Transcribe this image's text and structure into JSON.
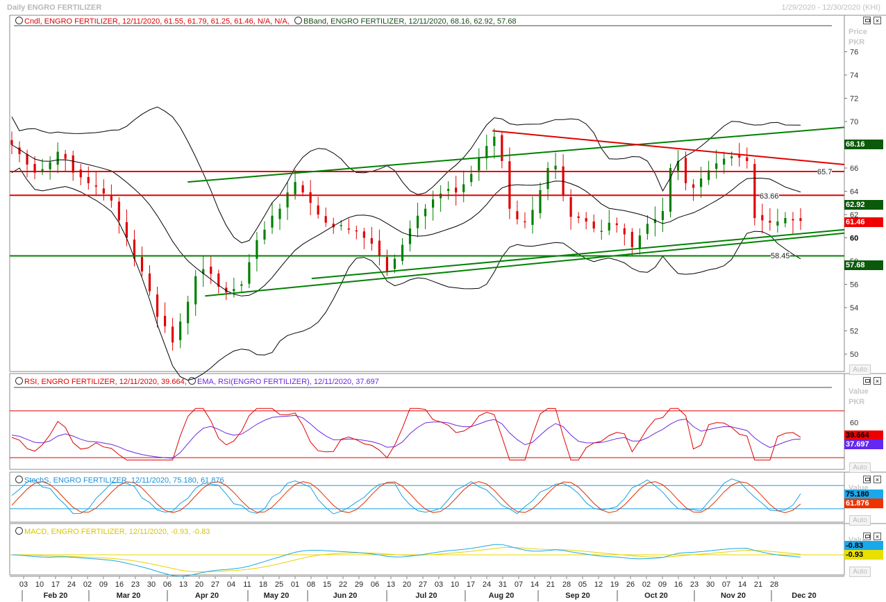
{
  "window": {
    "title": "Daily ENGRO FERTILIZER",
    "date_range": "1/29/2020 - 12/30/2020 (KHI)",
    "auto_label": "Auto"
  },
  "price_panel": {
    "legend_candle": "Cndl, ENGRO FERTILIZER, 12/11/2020, 61.55, 61.79, 61.25, 61.46, N/A, N/A,",
    "legend_bband": "BBand, ENGRO FERTILIZER, 12/11/2020, 68.16, 62.92, 57.68",
    "unit_label": "Price",
    "unit_sub": "PKR",
    "tags": {
      "bb_upper": "68.16",
      "bb_mid": "62.92",
      "close": "61.46",
      "bb_lower": "57.68"
    },
    "level_labels": {
      "l1": "65.7",
      "l2": "63.66",
      "l3": "58.45"
    }
  },
  "rsi_panel": {
    "legend_rsi": "RSI, ENGRO FERTILIZER, 12/11/2020, 39.664,",
    "legend_ema": "EMA, RSI(ENGRO FERTILIZER), 12/11/2020, 37.697",
    "unit_label": "Value",
    "unit_sub": "PKR",
    "tags": {
      "rsi": "39.664",
      "ema": "37.697"
    }
  },
  "stoch_panel": {
    "legend": "StochS, ENGRO FERTILIZER, 12/11/2020, 75.180, 61.876",
    "unit_label": "Value",
    "tags": {
      "k": "75.180",
      "d": "61.876"
    }
  },
  "macd_panel": {
    "legend": "MACD, ENGRO FERTILIZER, 12/11/2020, -0.93, -0.83",
    "unit_label": "Value",
    "tags": {
      "macd": "-0.83",
      "signal": "-0.93"
    }
  },
  "colors": {
    "candle_up": "#008000",
    "candle_down": "#e00000",
    "bband": "#000000",
    "support_line": "#008000",
    "resistance_line": "#e00000",
    "rsi": "#e00000",
    "ema": "#6a28e0",
    "stoch_k": "#1aa0e0",
    "stoch_d": "#e03000",
    "macd": "#1aa8e8",
    "signal": "#e8d400"
  },
  "chart_data": {
    "type": "candlestick",
    "ticker": "ENGRO FERTILIZER",
    "price_axis": {
      "ticks": [
        50,
        52,
        54,
        56,
        58,
        60,
        62,
        64,
        66,
        68,
        70,
        72,
        74,
        76
      ],
      "ylim": [
        49,
        78.5
      ]
    },
    "rsi_axis": {
      "ticks": [
        60
      ],
      "overbought": 70,
      "oversold": 30,
      "ylim": [
        20,
        90
      ]
    },
    "stoch_axis": {
      "upper": 80,
      "lower": 20
    },
    "macd_axis": {
      "zero": 0
    },
    "x_ticks": [
      "03",
      "10",
      "17",
      "24",
      "02",
      "09",
      "16",
      "23",
      "30",
      "06",
      "13",
      "20",
      "27",
      "04",
      "11",
      "18",
      "25",
      "01",
      "08",
      "15",
      "22",
      "29",
      "06",
      "13",
      "20",
      "27",
      "03",
      "10",
      "17",
      "24",
      "31",
      "07",
      "14",
      "21",
      "28",
      "05",
      "12",
      "19",
      "26",
      "02",
      "09",
      "16",
      "23",
      "30",
      "07",
      "14",
      "21",
      "28"
    ],
    "months": [
      "Feb 20",
      "Mar 20",
      "Apr 20",
      "May 20",
      "Jun 20",
      "Jul 20",
      "Aug 20",
      "Sep 20",
      "Oct 20",
      "Nov 20",
      "Dec 20"
    ],
    "last_bar": {
      "date": "12/11/2020",
      "open": 61.55,
      "high": 61.79,
      "low": 61.25,
      "close": 61.46
    },
    "bollinger_last": {
      "upper": 68.16,
      "middle": 62.92,
      "lower": 57.68
    },
    "horizontal_levels": [
      {
        "value": 65.7,
        "color": "red"
      },
      {
        "value": 63.66,
        "color": "red"
      },
      {
        "value": 58.45,
        "color": "green"
      }
    ],
    "trendlines": [
      {
        "color": "green",
        "from": [
          "04/16/2020",
          55.0
        ],
        "to": [
          "12/30/2020",
          60.4
        ]
      },
      {
        "color": "green",
        "from": [
          "04/09/2020",
          64.8
        ],
        "to": [
          "12/30/2020",
          69.5
        ]
      },
      {
        "color": "green",
        "from": [
          "05/29/2020",
          56.5
        ],
        "to": [
          "12/30/2020",
          60.7
        ]
      },
      {
        "color": "red",
        "from": [
          "08/10/2020",
          69.2
        ],
        "to": [
          "12/30/2020",
          66.3
        ]
      }
    ],
    "close_series": [
      68.0,
      67.2,
      66.3,
      65.6,
      65.9,
      66.5,
      67.4,
      66.8,
      65.6,
      65.2,
      64.7,
      64.4,
      63.8,
      63.2,
      61.5,
      60.0,
      58.2,
      57.1,
      55.4,
      53.2,
      52.4,
      51.0,
      52.8,
      54.5,
      56.7,
      57.3,
      56.9,
      55.8,
      55.3,
      55.6,
      56.0,
      57.9,
      59.8,
      60.7,
      61.9,
      62.5,
      63.9,
      64.8,
      63.9,
      63.0,
      62.0,
      61.3,
      60.9,
      61.1,
      60.7,
      60.6,
      60.0,
      59.5,
      58.5,
      57.1,
      58.2,
      59.4,
      60.8,
      61.9,
      62.5,
      63.3,
      63.8,
      64.2,
      63.9,
      64.6,
      65.5,
      66.9,
      67.9,
      68.7,
      66.6,
      62.5,
      61.6,
      61.4,
      62.4,
      64.1,
      66.0,
      66.2,
      63.6,
      61.8,
      61.7,
      61.4,
      60.8,
      60.6,
      61.3,
      61.1,
      60.3,
      59.2,
      60.2,
      61.2,
      61.6,
      62.3,
      66.0,
      66.6,
      64.7,
      64.3,
      65.1,
      65.8,
      66.4,
      66.8,
      67.0,
      66.9,
      66.6,
      61.7,
      61.5,
      61.3,
      61.4,
      61.7,
      61.5,
      61.46
    ],
    "rsi_last": 39.664,
    "rsi_ema_last": 37.697,
    "stoch_last": {
      "k": 75.18,
      "d": 61.876
    },
    "macd_last": {
      "macd": -0.83,
      "signal": -0.93
    }
  }
}
